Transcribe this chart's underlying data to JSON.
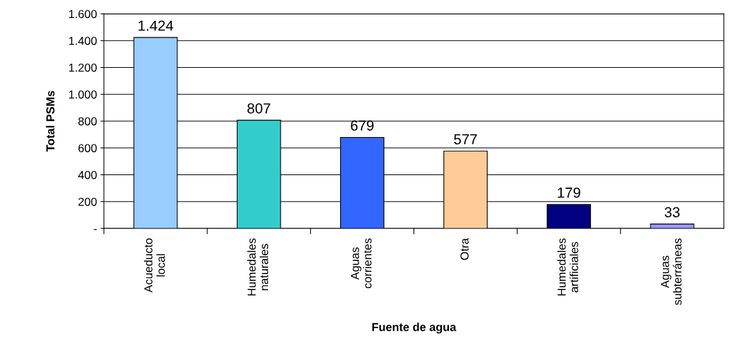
{
  "chart_data": {
    "type": "bar",
    "xlabel": "Fuente de agua",
    "ylabel": "Total PSMs",
    "categories": [
      "Acueducto\nlocal",
      "Humedales\nnaturales",
      "Aguas\ncorrientes",
      "Otra",
      "Humedales\nartificiales",
      "Aguas\nsubterráneas"
    ],
    "values": [
      1424,
      807,
      679,
      577,
      179,
      33
    ],
    "colors": [
      "#99ccff",
      "#33cccc",
      "#3366ff",
      "#ffcc99",
      "#000080",
      "#9999ff"
    ],
    "value_labels": [
      "1.424",
      "807",
      "679",
      "577",
      "179",
      "33"
    ],
    "ylim": [
      0,
      1600
    ],
    "yticks": [
      {
        "value": 0,
        "label": "-"
      },
      {
        "value": 200,
        "label": "200"
      },
      {
        "value": 400,
        "label": "400"
      },
      {
        "value": 600,
        "label": "600"
      },
      {
        "value": 800,
        "label": "800"
      },
      {
        "value": 1000,
        "label": "1.000"
      },
      {
        "value": 1200,
        "label": "1.200"
      },
      {
        "value": 1400,
        "label": "1.400"
      },
      {
        "value": 1600,
        "label": "1.600"
      }
    ],
    "grid": "y",
    "legend": false
  }
}
